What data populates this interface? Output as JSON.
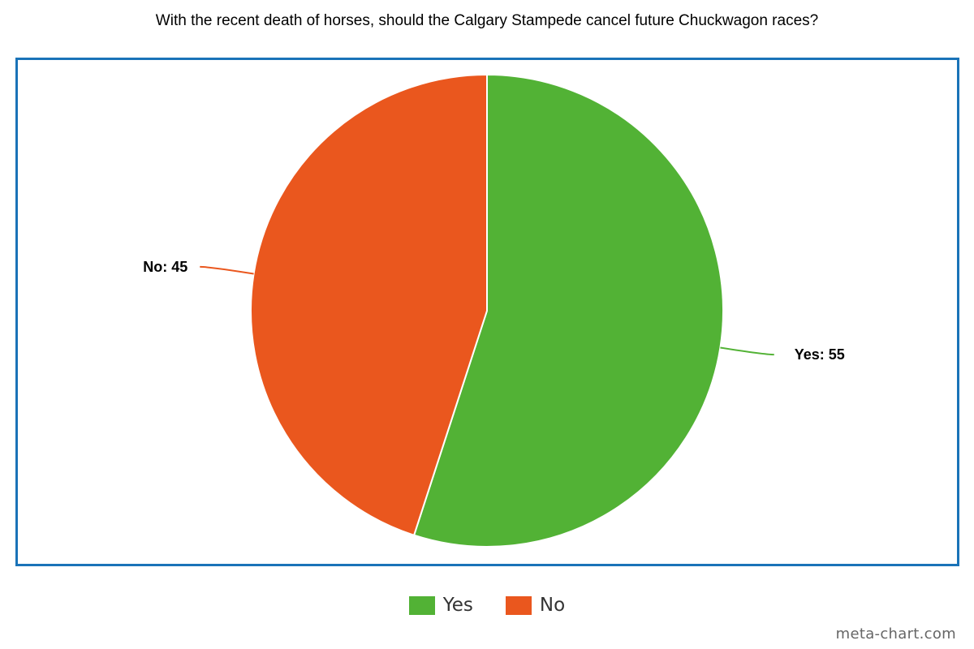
{
  "chart_data": {
    "type": "pie",
    "title": "With the recent death of horses, should the Calgary Stampede cancel future Chuckwagon races?",
    "slices": [
      {
        "name": "Yes",
        "value": 55,
        "label": "Yes: 55",
        "color": "#52b235"
      },
      {
        "name": "No",
        "value": 45,
        "label": "No: 45",
        "color": "#ea571e"
      }
    ],
    "legend_position": "bottom",
    "frame_color": "#1a73b8"
  },
  "legend": [
    {
      "label": "Yes",
      "color": "#52b235"
    },
    {
      "label": "No",
      "color": "#ea571e"
    }
  ],
  "watermark": "meta-chart.com"
}
